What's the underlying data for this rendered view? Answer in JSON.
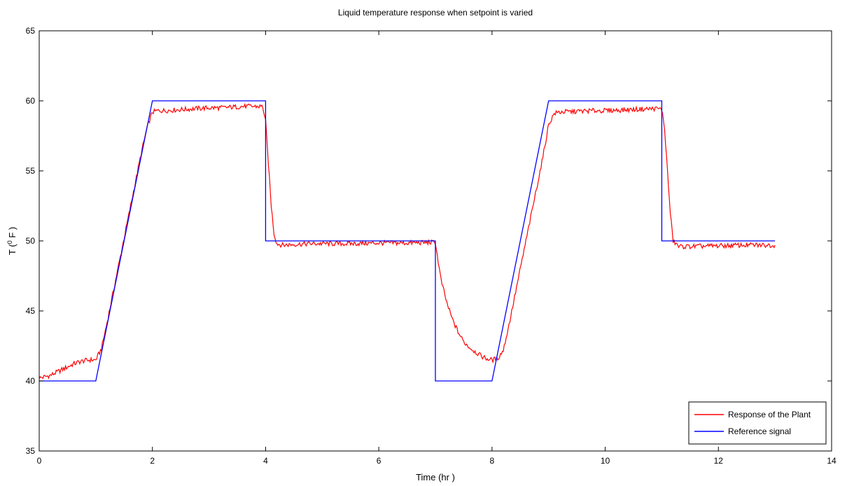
{
  "chart_data": {
    "type": "line",
    "title": "Liquid temperature response when setpoint is varied",
    "xlabel": "Time (hr )",
    "ylabel": "T ( F )",
    "ylabel_superscript": "0",
    "xlim": [
      0,
      14
    ],
    "ylim": [
      35,
      65
    ],
    "xticks": [
      0,
      2,
      4,
      6,
      8,
      10,
      12,
      14
    ],
    "yticks": [
      35,
      40,
      45,
      50,
      55,
      60,
      65
    ],
    "grid": false,
    "legend_position": "bottom-right",
    "series": [
      {
        "name": "Response of the Plant",
        "color": "#ff0000",
        "x": [
          0,
          0.1,
          0.2,
          0.3,
          0.4,
          0.5,
          0.6,
          0.7,
          0.8,
          0.9,
          1.0,
          1.1,
          1.2,
          1.3,
          1.4,
          1.5,
          1.6,
          1.7,
          1.8,
          1.9,
          2.0,
          2.1,
          2.2,
          2.4,
          2.6,
          2.8,
          3.0,
          3.2,
          3.4,
          3.6,
          3.8,
          3.95,
          4.0,
          4.05,
          4.1,
          4.15,
          4.2,
          4.3,
          4.5,
          4.8,
          5.0,
          5.5,
          6.0,
          6.5,
          7.0,
          7.05,
          7.1,
          7.2,
          7.3,
          7.4,
          7.5,
          7.6,
          7.7,
          7.8,
          7.9,
          8.0,
          8.1,
          8.2,
          8.3,
          8.4,
          8.5,
          8.6,
          8.7,
          8.8,
          8.9,
          9.0,
          9.1,
          9.2,
          9.5,
          9.8,
          10.0,
          10.3,
          10.6,
          10.9,
          11.0,
          11.05,
          11.1,
          11.15,
          11.2,
          11.3,
          11.5,
          12.0,
          12.5,
          13.0
        ],
        "y": [
          40.2,
          40.3,
          40.4,
          40.6,
          40.8,
          41.0,
          41.2,
          41.35,
          41.45,
          41.5,
          41.5,
          42.3,
          44.2,
          46.2,
          48.2,
          50.2,
          52.2,
          54.2,
          56.2,
          58.0,
          59.2,
          59.3,
          59.3,
          59.35,
          59.4,
          59.45,
          59.5,
          59.5,
          59.55,
          59.6,
          59.6,
          59.6,
          58.5,
          55.5,
          52.5,
          50.5,
          49.8,
          49.7,
          49.75,
          49.8,
          49.8,
          49.8,
          49.85,
          49.85,
          49.9,
          48.5,
          47.2,
          45.6,
          44.4,
          43.5,
          42.8,
          42.4,
          42.1,
          41.8,
          41.6,
          41.5,
          41.6,
          42.2,
          44.0,
          46.0,
          48.0,
          50.0,
          52.0,
          54.0,
          56.0,
          58.3,
          59.1,
          59.2,
          59.25,
          59.3,
          59.3,
          59.35,
          59.4,
          59.45,
          59.4,
          58.0,
          55.0,
          52.0,
          50.0,
          49.6,
          49.6,
          49.65,
          49.7,
          49.7
        ]
      },
      {
        "name": "Reference signal",
        "color": "#0000ff",
        "x": [
          0,
          1,
          2,
          4,
          4,
          7,
          7,
          8,
          9,
          11,
          11,
          13
        ],
        "y": [
          40,
          40,
          60,
          60,
          50,
          50,
          40,
          40,
          60,
          60,
          50,
          50
        ]
      }
    ]
  }
}
